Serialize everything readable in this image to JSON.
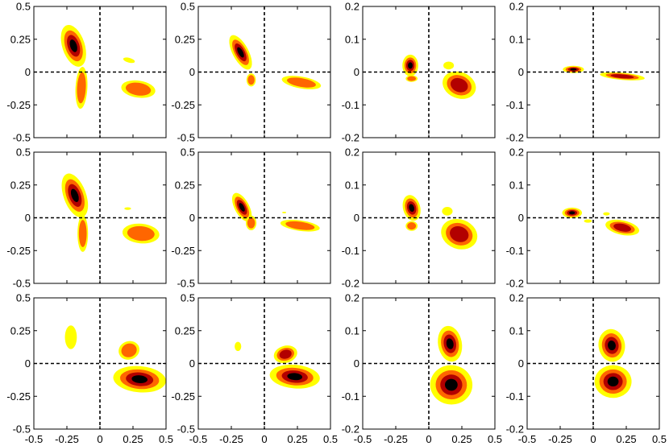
{
  "chart_data": {
    "type": "contour",
    "grid": {
      "rows": 3,
      "cols": 4
    },
    "colors": {
      "level1": "#ffff00",
      "level2": "#ff6600",
      "level3": "#b20000",
      "level4": "#000000",
      "axes": "#000000",
      "background": "#ffffff"
    },
    "panels": [
      {
        "id": "r1c1",
        "xlim": [
          -0.5,
          0.5
        ],
        "ylim": [
          -0.5,
          0.5
        ],
        "yticks": [
          -0.5,
          -0.25,
          0,
          0.25,
          0.5
        ],
        "ytick_labels": [
          "-0.5",
          "-0.25",
          "0",
          "0.25",
          "0.5"
        ],
        "xticks": [
          -0.5,
          -0.25,
          0,
          0.25,
          0.5
        ],
        "xtick_labels": [],
        "blobs": [
          {
            "cx": -0.2,
            "cy": 0.2,
            "rx": 0.085,
            "ry": 0.165,
            "rot": -18,
            "levels": 4
          },
          {
            "cx": 0.29,
            "cy": -0.13,
            "rx": 0.13,
            "ry": 0.065,
            "rot": 8,
            "levels": 2
          },
          {
            "cx": -0.14,
            "cy": -0.12,
            "rx": 0.045,
            "ry": 0.16,
            "rot": 3,
            "levels": 2
          },
          {
            "cx": 0.22,
            "cy": 0.09,
            "rx": 0.045,
            "ry": 0.018,
            "rot": 15,
            "levels": 1
          }
        ]
      },
      {
        "id": "r1c2",
        "xlim": [
          -0.5,
          0.5
        ],
        "ylim": [
          -0.5,
          0.5
        ],
        "yticks": [
          -0.5,
          -0.25,
          0,
          0.25,
          0.5
        ],
        "ytick_labels": [
          "-0.5",
          "-0.25",
          "0",
          "0.25",
          "0.5"
        ],
        "xticks": [
          -0.5,
          -0.25,
          0,
          0.25,
          0.5
        ],
        "xtick_labels": [],
        "blobs": [
          {
            "cx": -0.18,
            "cy": 0.15,
            "rx": 0.06,
            "ry": 0.145,
            "rot": -28,
            "levels": 4
          },
          {
            "cx": 0.28,
            "cy": -0.08,
            "rx": 0.15,
            "ry": 0.045,
            "rot": 10,
            "levels": 2
          },
          {
            "cx": -0.1,
            "cy": -0.06,
            "rx": 0.035,
            "ry": 0.05,
            "rot": 0,
            "levels": 2
          }
        ]
      },
      {
        "id": "r1c3",
        "xlim": [
          -0.5,
          0.5
        ],
        "ylim": [
          -0.2,
          0.2
        ],
        "yticks": [
          -0.2,
          -0.1,
          0,
          0.1,
          0.2
        ],
        "ytick_labels": [
          "-0.2",
          "-0.1",
          "0",
          "0.1",
          "0.2"
        ],
        "xticks": [
          -0.5,
          -0.25,
          0,
          0.25,
          0.5
        ],
        "xtick_labels": [],
        "blobs": [
          {
            "cx": -0.14,
            "cy": 0.02,
            "rx": 0.06,
            "ry": 0.033,
            "rot": 0,
            "levels": 4
          },
          {
            "cx": 0.23,
            "cy": -0.04,
            "rx": 0.13,
            "ry": 0.04,
            "rot": 22,
            "levels": 3
          },
          {
            "cx": 0.15,
            "cy": 0.02,
            "rx": 0.04,
            "ry": 0.012,
            "rot": 0,
            "levels": 1
          },
          {
            "cx": -0.13,
            "cy": -0.02,
            "rx": 0.045,
            "ry": 0.01,
            "rot": 0,
            "levels": 2
          }
        ]
      },
      {
        "id": "r1c4",
        "xlim": [
          -0.5,
          0.5
        ],
        "ylim": [
          -0.2,
          0.2
        ],
        "yticks": [
          -0.2,
          -0.1,
          0,
          0.1,
          0.2
        ],
        "ytick_labels": [
          "-0.2",
          "-0.1",
          "0",
          "0.1",
          "0.2"
        ],
        "xticks": [
          -0.5,
          -0.25,
          0,
          0.25,
          0.5
        ],
        "xtick_labels": [],
        "blobs": [
          {
            "cx": -0.15,
            "cy": 0.008,
            "rx": 0.08,
            "ry": 0.011,
            "rot": 0,
            "levels": 4
          },
          {
            "cx": 0.22,
            "cy": -0.013,
            "rx": 0.17,
            "ry": 0.011,
            "rot": 5,
            "levels": 3
          }
        ]
      },
      {
        "id": "r2c1",
        "xlim": [
          -0.5,
          0.5
        ],
        "ylim": [
          -0.5,
          0.5
        ],
        "yticks": [
          -0.5,
          -0.25,
          0,
          0.25,
          0.5
        ],
        "ytick_labels": [
          "-0.5",
          "-0.25",
          "0",
          "0.25",
          "0.5"
        ],
        "xticks": [
          -0.5,
          -0.25,
          0,
          0.25,
          0.5
        ],
        "xtick_labels": [],
        "blobs": [
          {
            "cx": -0.19,
            "cy": 0.17,
            "rx": 0.085,
            "ry": 0.175,
            "rot": -20,
            "levels": 4
          },
          {
            "cx": 0.31,
            "cy": -0.12,
            "rx": 0.14,
            "ry": 0.075,
            "rot": 5,
            "levels": 2
          },
          {
            "cx": -0.13,
            "cy": -0.12,
            "rx": 0.04,
            "ry": 0.14,
            "rot": 0,
            "levels": 2
          },
          {
            "cx": 0.21,
            "cy": 0.07,
            "rx": 0.025,
            "ry": 0.01,
            "rot": 0,
            "levels": 1
          }
        ]
      },
      {
        "id": "r2c2",
        "xlim": [
          -0.5,
          0.5
        ],
        "ylim": [
          -0.5,
          0.5
        ],
        "yticks": [
          -0.5,
          -0.25,
          0,
          0.25,
          0.5
        ],
        "ytick_labels": [
          "-0.5",
          "-0.25",
          "0",
          "0.25",
          "0.5"
        ],
        "xticks": [
          -0.5,
          -0.25,
          0,
          0.25,
          0.5
        ],
        "xtick_labels": [],
        "blobs": [
          {
            "cx": -0.17,
            "cy": 0.08,
            "rx": 0.055,
            "ry": 0.12,
            "rot": -28,
            "levels": 4
          },
          {
            "cx": 0.27,
            "cy": -0.06,
            "rx": 0.15,
            "ry": 0.04,
            "rot": 8,
            "levels": 2
          },
          {
            "cx": -0.1,
            "cy": -0.04,
            "rx": 0.04,
            "ry": 0.055,
            "rot": 0,
            "levels": 2
          },
          {
            "cx": 0.15,
            "cy": 0.04,
            "rx": 0.015,
            "ry": 0.006,
            "rot": 0,
            "levels": 1
          }
        ]
      },
      {
        "id": "r2c3",
        "xlim": [
          -0.5,
          0.5
        ],
        "ylim": [
          -0.2,
          0.2
        ],
        "yticks": [
          -0.2,
          -0.1,
          0,
          0.1,
          0.2
        ],
        "ytick_labels": [
          "-0.2",
          "-0.1",
          "0",
          "0.1",
          "0.2"
        ],
        "xticks": [
          -0.5,
          -0.25,
          0,
          0.25,
          0.5
        ],
        "xtick_labels": [],
        "blobs": [
          {
            "cx": -0.13,
            "cy": 0.03,
            "rx": 0.065,
            "ry": 0.04,
            "rot": -15,
            "levels": 4
          },
          {
            "cx": 0.23,
            "cy": -0.05,
            "rx": 0.14,
            "ry": 0.045,
            "rot": 20,
            "levels": 3
          },
          {
            "cx": 0.14,
            "cy": 0.02,
            "rx": 0.04,
            "ry": 0.013,
            "rot": 0,
            "levels": 1
          },
          {
            "cx": -0.13,
            "cy": -0.025,
            "rx": 0.045,
            "ry": 0.015,
            "rot": 0,
            "levels": 2
          }
        ]
      },
      {
        "id": "r2c4",
        "xlim": [
          -0.5,
          0.5
        ],
        "ylim": [
          -0.2,
          0.2
        ],
        "yticks": [
          -0.2,
          -0.1,
          0,
          0.1,
          0.2
        ],
        "ytick_labels": [
          "-0.2",
          "-0.1",
          "0",
          "0.1",
          "0.2"
        ],
        "xticks": [
          -0.5,
          -0.25,
          0,
          0.25,
          0.5
        ],
        "xtick_labels": [],
        "blobs": [
          {
            "cx": -0.16,
            "cy": 0.015,
            "rx": 0.075,
            "ry": 0.016,
            "rot": 0,
            "levels": 4
          },
          {
            "cx": 0.22,
            "cy": -0.03,
            "rx": 0.13,
            "ry": 0.022,
            "rot": 12,
            "levels": 3
          },
          {
            "cx": 0.1,
            "cy": 0.012,
            "rx": 0.025,
            "ry": 0.005,
            "rot": 0,
            "levels": 1
          },
          {
            "cx": -0.04,
            "cy": -0.01,
            "rx": 0.03,
            "ry": 0.005,
            "rot": 0,
            "levels": 1
          }
        ]
      },
      {
        "id": "r3c1",
        "xlim": [
          -0.5,
          0.5
        ],
        "ylim": [
          -0.5,
          0.5
        ],
        "yticks": [
          -0.5,
          -0.25,
          0,
          0.25,
          0.5
        ],
        "ytick_labels": [
          "-0.5",
          "-0.25",
          "0",
          "0.25",
          "0.5"
        ],
        "xticks": [
          -0.5,
          -0.25,
          0,
          0.25,
          0.5
        ],
        "xtick_labels": [
          "-0.5",
          "-0.25",
          "0",
          "0.25",
          "0.5"
        ],
        "blobs": [
          {
            "cx": 0.3,
            "cy": -0.12,
            "rx": 0.2,
            "ry": 0.1,
            "rot": 5,
            "levels": 4
          },
          {
            "cx": 0.22,
            "cy": 0.1,
            "rx": 0.08,
            "ry": 0.07,
            "rot": -20,
            "levels": 2
          },
          {
            "cx": -0.22,
            "cy": 0.2,
            "rx": 0.045,
            "ry": 0.09,
            "rot": 0,
            "levels": 1
          }
        ]
      },
      {
        "id": "r3c2",
        "xlim": [
          -0.5,
          0.5
        ],
        "ylim": [
          -0.5,
          0.5
        ],
        "yticks": [
          -0.5,
          -0.25,
          0,
          0.25,
          0.5
        ],
        "ytick_labels": [
          "-0.5",
          "-0.25",
          "0",
          "0.25",
          "0.5"
        ],
        "xticks": [
          -0.5,
          -0.25,
          0,
          0.25,
          0.5
        ],
        "xtick_labels": [
          "-0.5",
          "-0.25",
          "0",
          "0.25",
          "0.5"
        ],
        "blobs": [
          {
            "cx": 0.23,
            "cy": -0.1,
            "rx": 0.19,
            "ry": 0.09,
            "rot": 5,
            "levels": 4
          },
          {
            "cx": 0.16,
            "cy": 0.07,
            "rx": 0.09,
            "ry": 0.065,
            "rot": -15,
            "levels": 3
          },
          {
            "cx": -0.2,
            "cy": 0.13,
            "rx": 0.025,
            "ry": 0.035,
            "rot": 0,
            "levels": 1
          }
        ]
      },
      {
        "id": "r3c3",
        "xlim": [
          -0.5,
          0.5
        ],
        "ylim": [
          -0.2,
          0.2
        ],
        "yticks": [
          -0.2,
          -0.1,
          0,
          0.1,
          0.2
        ],
        "ytick_labels": [
          "-0.2",
          "-0.1",
          "0",
          "0.1",
          "0.2"
        ],
        "xticks": [
          -0.5,
          -0.25,
          0,
          0.25,
          0.5
        ],
        "xtick_labels": [
          "-0.5",
          "-0.25",
          "0",
          "0.25",
          "0.5"
        ],
        "blobs": [
          {
            "cx": 0.17,
            "cy": -0.065,
            "rx": 0.16,
            "ry": 0.06,
            "rot": 3,
            "levels": 4
          },
          {
            "cx": 0.16,
            "cy": 0.06,
            "rx": 0.09,
            "ry": 0.055,
            "rot": -10,
            "levels": 4
          }
        ]
      },
      {
        "id": "r3c4",
        "xlim": [
          -0.5,
          0.5
        ],
        "ylim": [
          -0.2,
          0.2
        ],
        "yticks": [
          -0.2,
          -0.1,
          0,
          0.1,
          0.2
        ],
        "ytick_labels": [
          "-0.2",
          "-0.1",
          "0",
          "0.1",
          "0.2"
        ],
        "xticks": [
          -0.5,
          -0.25,
          0,
          0.25,
          0.5
        ],
        "xtick_labels": [
          "-0.5",
          "-0.25",
          "0",
          "0.25",
          "0.5"
        ],
        "blobs": [
          {
            "cx": 0.15,
            "cy": -0.055,
            "rx": 0.14,
            "ry": 0.05,
            "rot": 0,
            "levels": 4
          },
          {
            "cx": 0.14,
            "cy": 0.055,
            "rx": 0.1,
            "ry": 0.05,
            "rot": -8,
            "levels": 4
          }
        ]
      }
    ]
  }
}
